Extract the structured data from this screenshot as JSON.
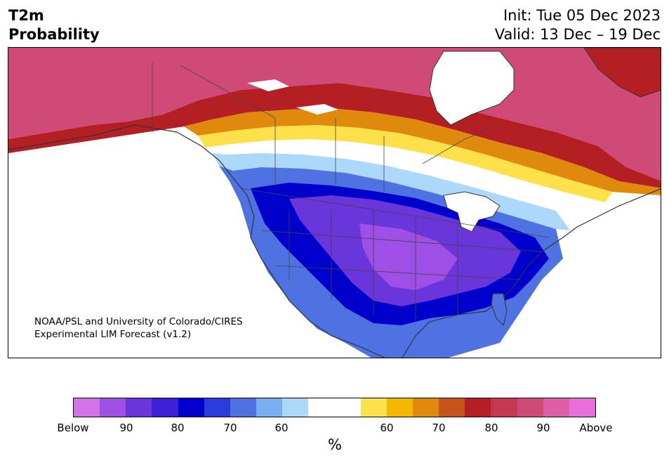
{
  "header": {
    "title_line1": "T2m",
    "title_line2": "Probability",
    "init_text": "Init: Tue 05 Dec 2023",
    "valid_text": "Valid: 13 Dec – 19 Dec"
  },
  "credit": {
    "line1": "NOAA/PSL and University of Colorado/CIRES",
    "line2": "Experimental LIM Forecast (v1.2)"
  },
  "colorbar": {
    "unit_label": "%",
    "colors": [
      "#d372e9",
      "#9d4fe6",
      "#6a36dc",
      "#3c1fd6",
      "#0000cd",
      "#2a3ddb",
      "#4f72e3",
      "#78aef0",
      "#acd9fb",
      "#ffffff",
      "#fee04a",
      "#f4b700",
      "#df8a0c",
      "#c9531c",
      "#b41f24",
      "#c5374d",
      "#d04a78",
      "#dd5ea6",
      "#e86fd9"
    ],
    "tick_labels": [
      "Below",
      "90",
      "80",
      "70",
      "60",
      "60",
      "70",
      "80",
      "90",
      "Above"
    ]
  },
  "map": {
    "region": "North America",
    "colors": {
      "warm_extreme": "#d04a78",
      "warm_strong": "#b41f24",
      "warm_mid": "#df8a0c",
      "warm_low": "#fee04a",
      "neutral": "#ffffff",
      "cold_low": "#acd9fb",
      "cold_mid": "#4f72e3",
      "cold_strong": "#0000cd",
      "cold_extreme": "#6a36dc",
      "cold_max": "#9d4fe6",
      "land_outline": "#333333"
    }
  }
}
